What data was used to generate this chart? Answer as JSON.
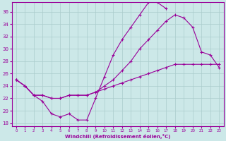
{
  "xlabel": "Windchill (Refroidissement éolien,°C)",
  "background_color": "#cce8e8",
  "line_color": "#990099",
  "xlim": [
    -0.5,
    23.5
  ],
  "ylim": [
    17.5,
    37.5
  ],
  "yticks": [
    18,
    20,
    22,
    24,
    26,
    28,
    30,
    32,
    34,
    36
  ],
  "xticks": [
    0,
    1,
    2,
    3,
    4,
    5,
    6,
    7,
    8,
    9,
    10,
    11,
    12,
    13,
    14,
    15,
    16,
    17,
    18,
    19,
    20,
    21,
    22,
    23
  ],
  "grid_color": "#aacccc",
  "line1_y": [
    25.0,
    24.0,
    22.5,
    21.5,
    19.5,
    19.0,
    19.5,
    18.5,
    18.5,
    22.0,
    25.5,
    29.0,
    31.5,
    33.5,
    35.5,
    37.5,
    37.5,
    36.5,
    null,
    null,
    null,
    null,
    null,
    null
  ],
  "line2_y": [
    25.0,
    24.0,
    22.5,
    22.5,
    22.0,
    22.0,
    22.5,
    22.5,
    22.5,
    23.0,
    24.0,
    25.0,
    26.5,
    28.0,
    30.0,
    31.5,
    33.0,
    34.5,
    35.5,
    35.0,
    33.5,
    29.5,
    29.0,
    27.0
  ],
  "line3_y": [
    25.0,
    24.0,
    22.5,
    22.5,
    22.0,
    22.0,
    22.5,
    22.5,
    22.5,
    23.0,
    23.5,
    24.0,
    24.5,
    25.0,
    25.5,
    26.0,
    26.5,
    27.0,
    27.5,
    27.5,
    27.5,
    27.5,
    27.5,
    27.5
  ]
}
